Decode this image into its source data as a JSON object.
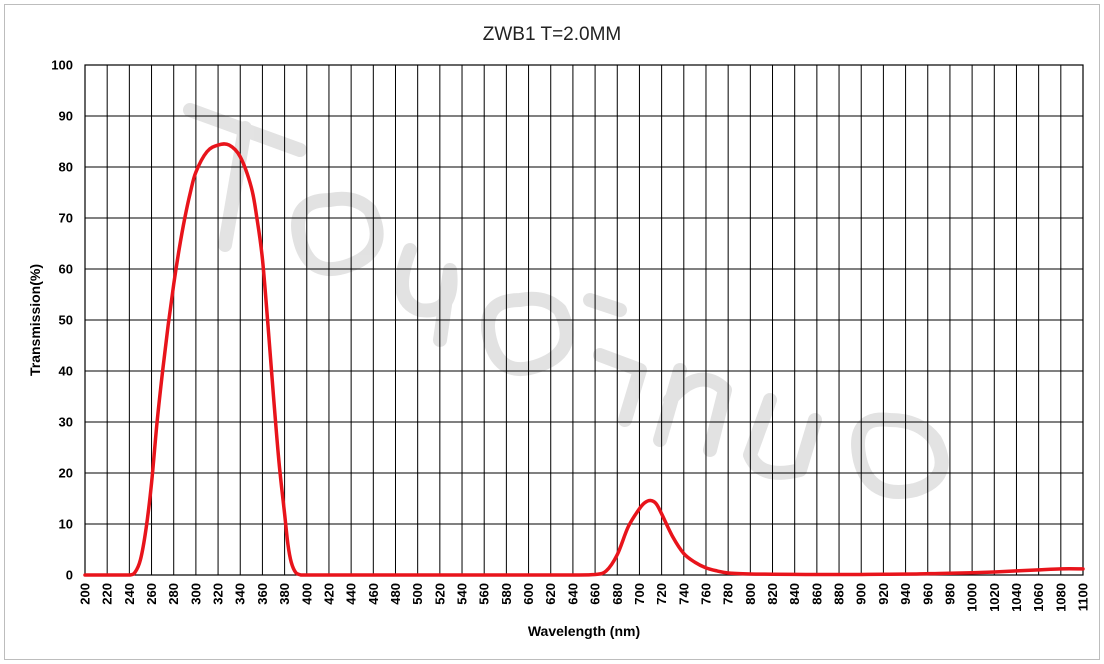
{
  "chart_data": {
    "type": "line",
    "title": "ZWB1 T=2.0MM",
    "xlabel": "Wavelength (nm)",
    "ylabel": "Transmission(%)",
    "xlim": [
      200,
      1100
    ],
    "ylim": [
      0,
      100
    ],
    "x_tick_labels": [
      "200",
      "220",
      "240",
      "260",
      "280",
      "300",
      "320",
      "340",
      "360",
      "380",
      "400",
      "420",
      "440",
      "460",
      "480",
      "500",
      "520",
      "540",
      "560",
      "580",
      "600",
      "620",
      "640",
      "660",
      "680",
      "700",
      "720",
      "740",
      "760",
      "780",
      "800",
      "820",
      "840",
      "860",
      "880",
      "900",
      "920",
      "940",
      "960",
      "980",
      "1000",
      "1020",
      "1040",
      "1060",
      "1080",
      "1100"
    ],
    "y_tick_labels": [
      "0",
      "10",
      "20",
      "30",
      "40",
      "50",
      "60",
      "70",
      "80",
      "90",
      "100"
    ],
    "grid": true,
    "series_color": "#e8141b",
    "series": [
      {
        "x": [
          200,
          230,
          240,
          245,
          250,
          255,
          260,
          265,
          270,
          275,
          280,
          285,
          290,
          295,
          300,
          310,
          320,
          330,
          340,
          350,
          355,
          360,
          365,
          370,
          375,
          380,
          383,
          386,
          390,
          395,
          400,
          450,
          500,
          550,
          600,
          640,
          660,
          670,
          680,
          690,
          700,
          705,
          710,
          715,
          720,
          730,
          740,
          750,
          760,
          770,
          780,
          800,
          820,
          850,
          880,
          900,
          920,
          950,
          970,
          1000,
          1020,
          1040,
          1060,
          1080,
          1100
        ],
        "y": [
          0,
          0,
          0,
          0.5,
          3,
          9,
          18,
          30,
          40,
          49,
          57,
          64,
          70,
          75,
          79,
          83,
          84.3,
          84.3,
          82,
          76,
          70,
          62,
          49,
          35,
          22,
          12,
          6,
          2.5,
          0.5,
          0,
          0,
          0,
          0,
          0,
          0,
          0,
          0.1,
          0.8,
          4,
          9.5,
          13,
          14.2,
          14.6,
          14,
          12,
          7.5,
          4.2,
          2.5,
          1.4,
          0.8,
          0.4,
          0.2,
          0.15,
          0.1,
          0.1,
          0.1,
          0.15,
          0.2,
          0.3,
          0.45,
          0.6,
          0.8,
          1.0,
          1.2,
          1.2
        ]
      }
    ]
  }
}
